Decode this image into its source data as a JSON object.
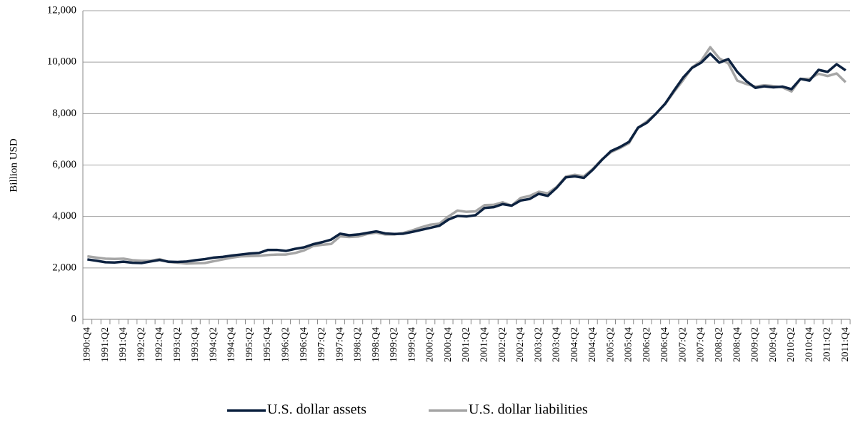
{
  "chart_data": {
    "type": "line",
    "y_label": "Billion USD",
    "categories": [
      "1990:Q4",
      null,
      "1991:Q2",
      null,
      "1991:Q4",
      null,
      "1992:Q2",
      null,
      "1992:Q4",
      null,
      "1993:Q2",
      null,
      "1993:Q4",
      null,
      "1994:Q2",
      null,
      "1994:Q4",
      null,
      "1995:Q2",
      null,
      "1995:Q4",
      null,
      "1996:Q2",
      null,
      "1996:Q4",
      null,
      "1997:Q2",
      null,
      "1997:Q4",
      null,
      "1998:Q2",
      null,
      "1998:Q4",
      null,
      "1999:Q2",
      null,
      "1999:Q4",
      null,
      "2000:Q2",
      null,
      "2000:Q4",
      null,
      "2001:Q2",
      null,
      "2001:Q4",
      null,
      "2002:Q2",
      null,
      "2002:Q4",
      null,
      "2003:Q2",
      null,
      "2003:Q4",
      null,
      "2004:Q2",
      null,
      "2004:Q4",
      null,
      "2005:Q2",
      null,
      "2005:Q4",
      null,
      "2006:Q2",
      null,
      "2006:Q4",
      null,
      "2007:Q2",
      null,
      "2007:Q4",
      null,
      "2008:Q2",
      null,
      "2008:Q4",
      null,
      "2009:Q2",
      null,
      "2009:Q4",
      null,
      "2010:Q2",
      null,
      "2010:Q4",
      null,
      "2011:Q2",
      null,
      "2011:Q4"
    ],
    "series": [
      {
        "name": "U.S. dollar assets",
        "color": "#0d2240",
        "values": [
          2330,
          2280,
          2220,
          2210,
          2240,
          2200,
          2190,
          2250,
          2310,
          2240,
          2230,
          2250,
          2300,
          2340,
          2400,
          2430,
          2480,
          2520,
          2560,
          2580,
          2700,
          2700,
          2660,
          2740,
          2800,
          2920,
          3000,
          3100,
          3330,
          3270,
          3300,
          3360,
          3420,
          3340,
          3320,
          3330,
          3400,
          3480,
          3560,
          3640,
          3880,
          4020,
          4000,
          4050,
          4330,
          4360,
          4480,
          4420,
          4620,
          4680,
          4880,
          4800,
          5120,
          5520,
          5560,
          5500,
          5820,
          6200,
          6540,
          6700,
          6900,
          7450,
          7650,
          8000,
          8380,
          8900,
          9400,
          9780,
          9980,
          10330,
          9980,
          10120,
          9620,
          9260,
          9000,
          9060,
          9020,
          9050,
          8950,
          9350,
          9280,
          9700,
          9620,
          9920,
          9680
        ]
      },
      {
        "name": "U.S. dollar liabilities",
        "color": "#a6a6a6",
        "values": [
          2450,
          2400,
          2360,
          2350,
          2360,
          2300,
          2280,
          2280,
          2340,
          2230,
          2200,
          2170,
          2180,
          2190,
          2260,
          2330,
          2400,
          2450,
          2460,
          2470,
          2500,
          2520,
          2520,
          2580,
          2680,
          2850,
          2900,
          2930,
          3230,
          3200,
          3220,
          3320,
          3370,
          3300,
          3300,
          3360,
          3460,
          3580,
          3680,
          3720,
          4000,
          4230,
          4180,
          4200,
          4440,
          4450,
          4550,
          4420,
          4720,
          4800,
          4960,
          4900,
          5150,
          5550,
          5620,
          5560,
          5850,
          6220,
          6500,
          6660,
          6850,
          7450,
          7700,
          8000,
          8370,
          8850,
          9300,
          9800,
          10050,
          10580,
          10150,
          9950,
          9280,
          9150,
          9050,
          9100,
          9070,
          9020,
          8860,
          9350,
          9350,
          9550,
          9460,
          9560,
          9220
        ]
      }
    ],
    "ylim": [
      0,
      12000
    ],
    "yticks": [
      0,
      {
        "value": 2000,
        "label": "2,000"
      },
      {
        "value": 4000,
        "label": "4,000"
      },
      {
        "value": 6000,
        "label": "6,000"
      },
      {
        "value": 8000,
        "label": "8,000"
      },
      {
        "value": 10000,
        "label": "10,000"
      },
      {
        "value": 12000,
        "label": "12,000"
      }
    ],
    "grid": true,
    "legend": "bottom"
  }
}
